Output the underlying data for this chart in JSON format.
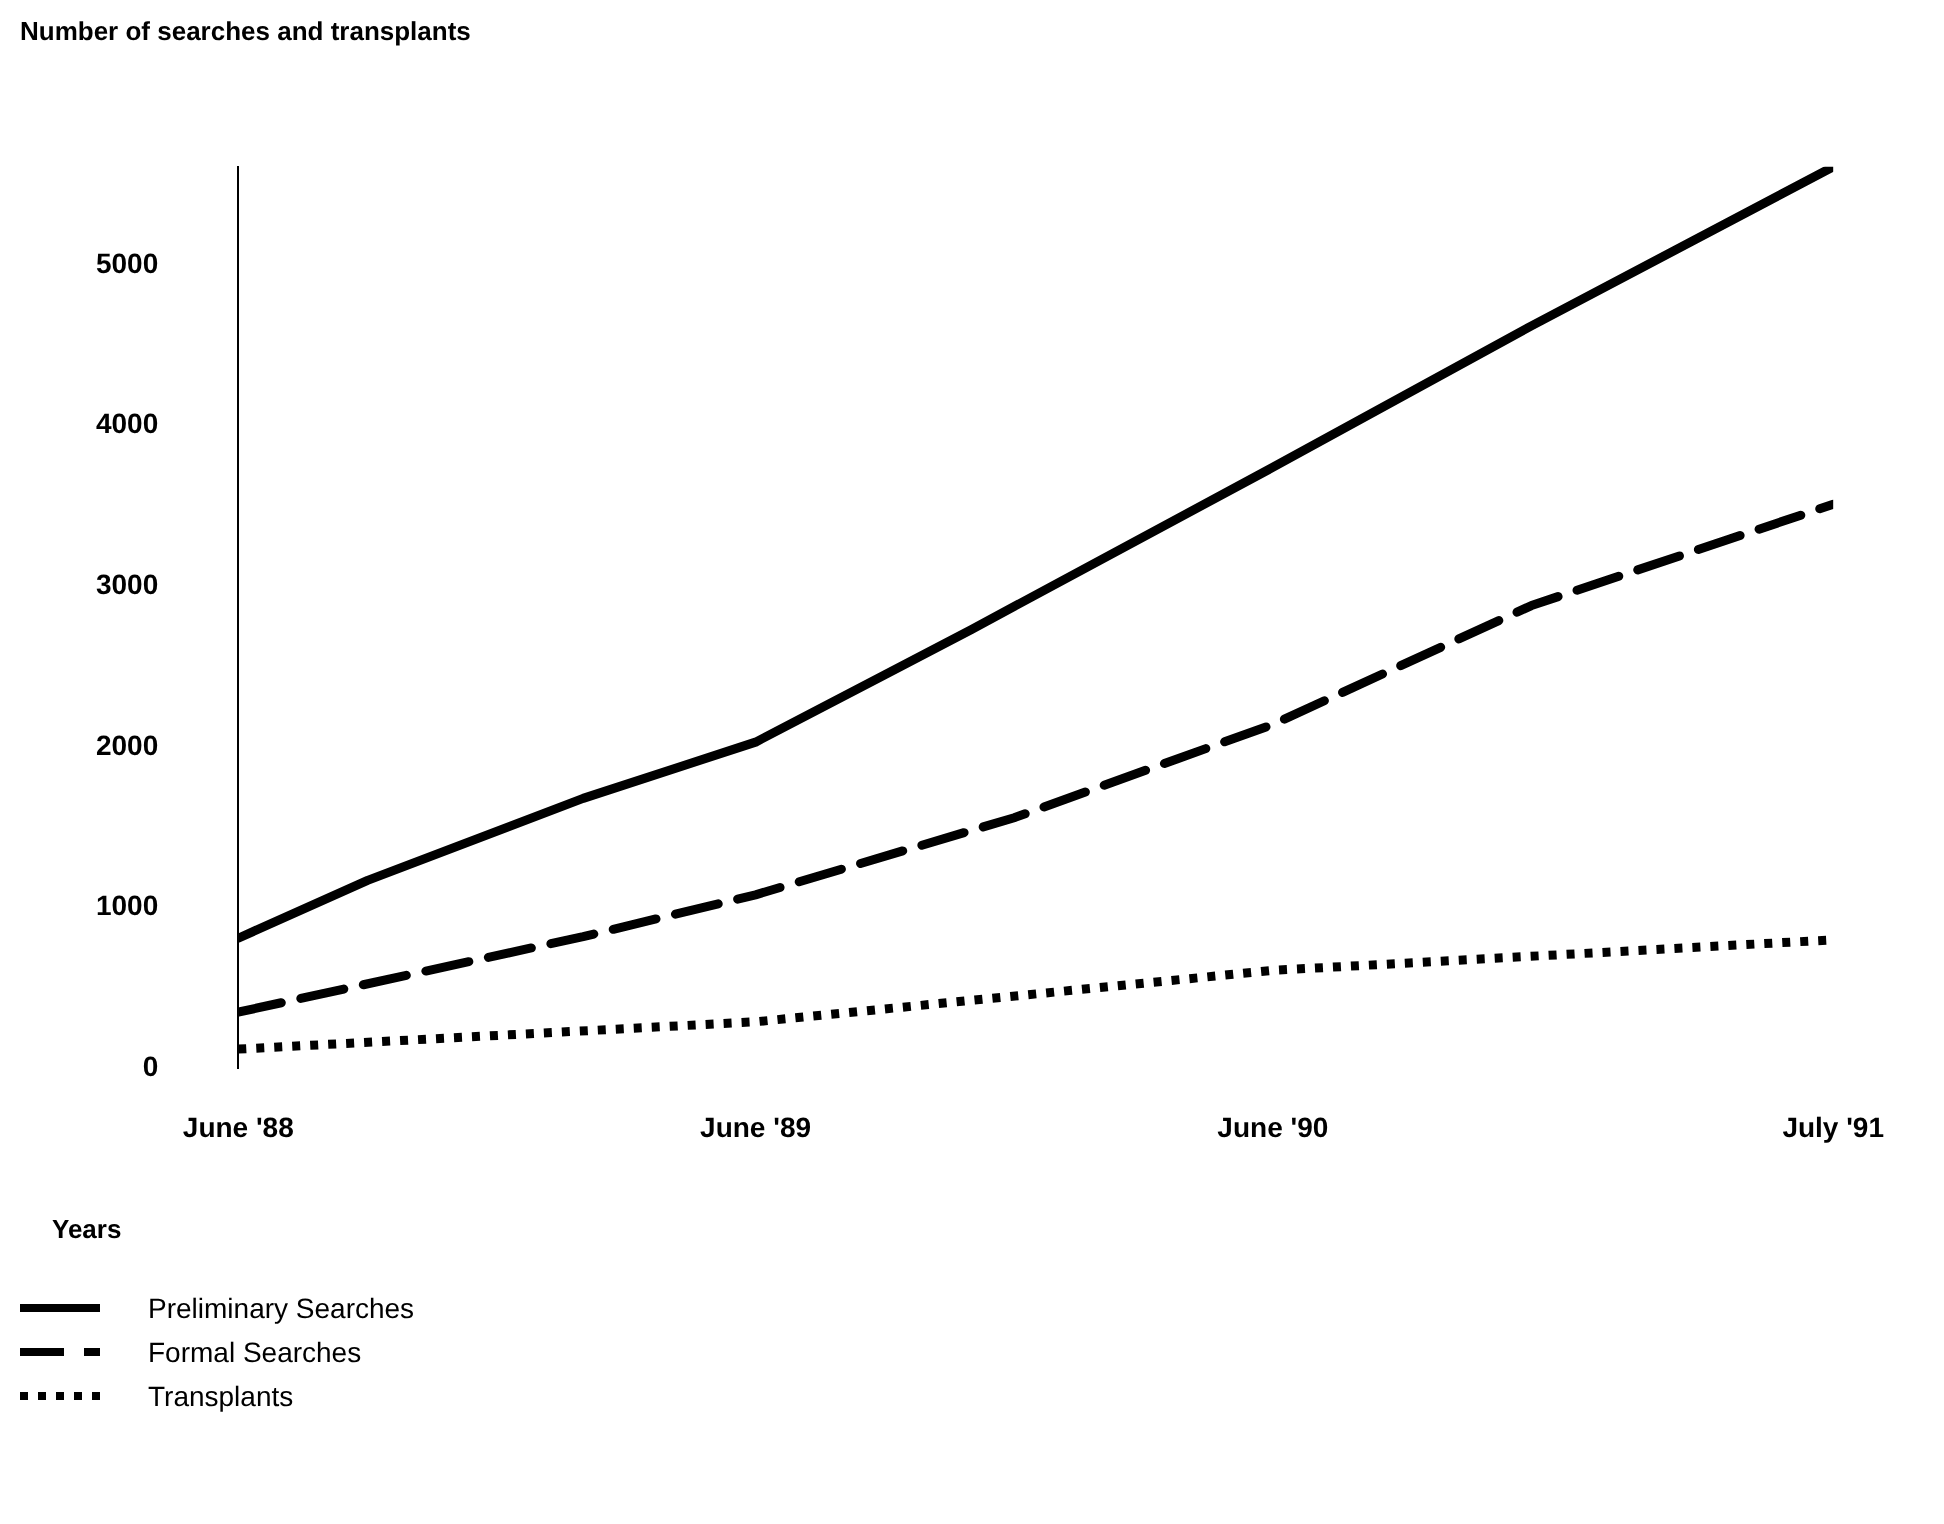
{
  "chart_data": {
    "type": "line",
    "ylabel": "Number of searches and transplants",
    "xlabel": "Years",
    "xlim": [
      "1988-06",
      "1991-07"
    ],
    "xticks": [
      {
        "value": "1988-06",
        "label": "June '88"
      },
      {
        "value": "1989-06",
        "label": "June '89"
      },
      {
        "value": "1990-06",
        "label": "June '90"
      },
      {
        "value": "1991-07",
        "label": "July '91"
      }
    ],
    "ylim": [
      0,
      5610
    ],
    "yticks": [
      0,
      1000,
      2000,
      3000,
      4000,
      5000
    ],
    "grid": false,
    "legend": "bottom left",
    "marker": "none",
    "series": [
      {
        "name": "Preliminary Searches",
        "color": "#000000",
        "line_style": "solid",
        "x": [
          "1988-06",
          "1988-09",
          "1989-02",
          "1989-06",
          "1989-09",
          "1989-11",
          "1990-06",
          "1990-12",
          "1991-07"
        ],
        "values": [
          810,
          1170,
          1680,
          2030,
          2450,
          2730,
          3740,
          4620,
          5610
        ]
      },
      {
        "name": "Formal Searches",
        "color": "#000000",
        "line_style": "dashed",
        "x": [
          "1988-06",
          "1989-02",
          "1989-06",
          "1989-12",
          "1990-06",
          "1990-12",
          "1991-07"
        ],
        "values": [
          350,
          820,
          1080,
          1560,
          2140,
          2880,
          3510
        ]
      },
      {
        "name": "Transplants",
        "color": "#000000",
        "line_style": "dotted",
        "x": [
          "1988-06",
          "1989-06",
          "1990-06",
          "1991-07"
        ],
        "values": [
          120,
          290,
          610,
          800
        ]
      }
    ]
  }
}
